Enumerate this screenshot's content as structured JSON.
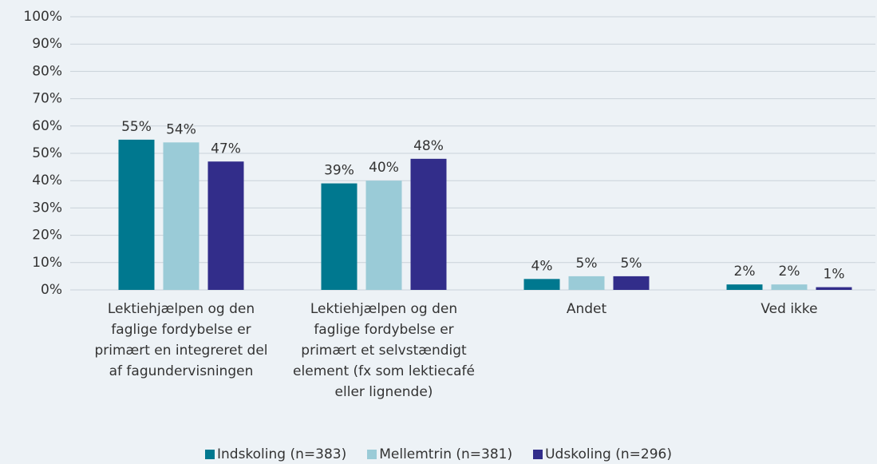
{
  "chart_data": {
    "type": "bar",
    "categories": [
      "Lektiehjælpen og den faglige fordybelse er primært en integreret del af fagundervisningen",
      "Lektiehjælpen og den faglige fordybelse er primært et selvstændigt element (fx som lektiecafé eller lignende)",
      "Andet",
      "Ved ikke"
    ],
    "series": [
      {
        "name": "Indskoling (n=383)",
        "color": "#00788f",
        "values": [
          55,
          39,
          4,
          2
        ],
        "value_labels": [
          "55%",
          "39%",
          "4%",
          "2%"
        ]
      },
      {
        "name": "Mellemtrin (n=381)",
        "color": "#9acbd7",
        "values": [
          54,
          40,
          5,
          2
        ],
        "value_labels": [
          "54%",
          "40%",
          "5%",
          "2%"
        ]
      },
      {
        "name": "Udskoling (n=296)",
        "color": "#322d8a",
        "values": [
          47,
          48,
          5,
          1
        ],
        "value_labels": [
          "47%",
          "48%",
          "5%",
          "1%"
        ]
      }
    ],
    "ylim": [
      0,
      100
    ],
    "yticks": [
      {
        "value": 0,
        "label": "0%"
      },
      {
        "value": 10,
        "label": "10%"
      },
      {
        "value": 20,
        "label": "20%"
      },
      {
        "value": 30,
        "label": "30%"
      },
      {
        "value": 40,
        "label": "40%"
      },
      {
        "value": 50,
        "label": "50%"
      },
      {
        "value": 60,
        "label": "60%"
      },
      {
        "value": 70,
        "label": "70%"
      },
      {
        "value": 80,
        "label": "80%"
      },
      {
        "value": 90,
        "label": "90%"
      },
      {
        "value": 100,
        "label": "100%"
      }
    ],
    "grid": true,
    "legend": "bottom"
  }
}
